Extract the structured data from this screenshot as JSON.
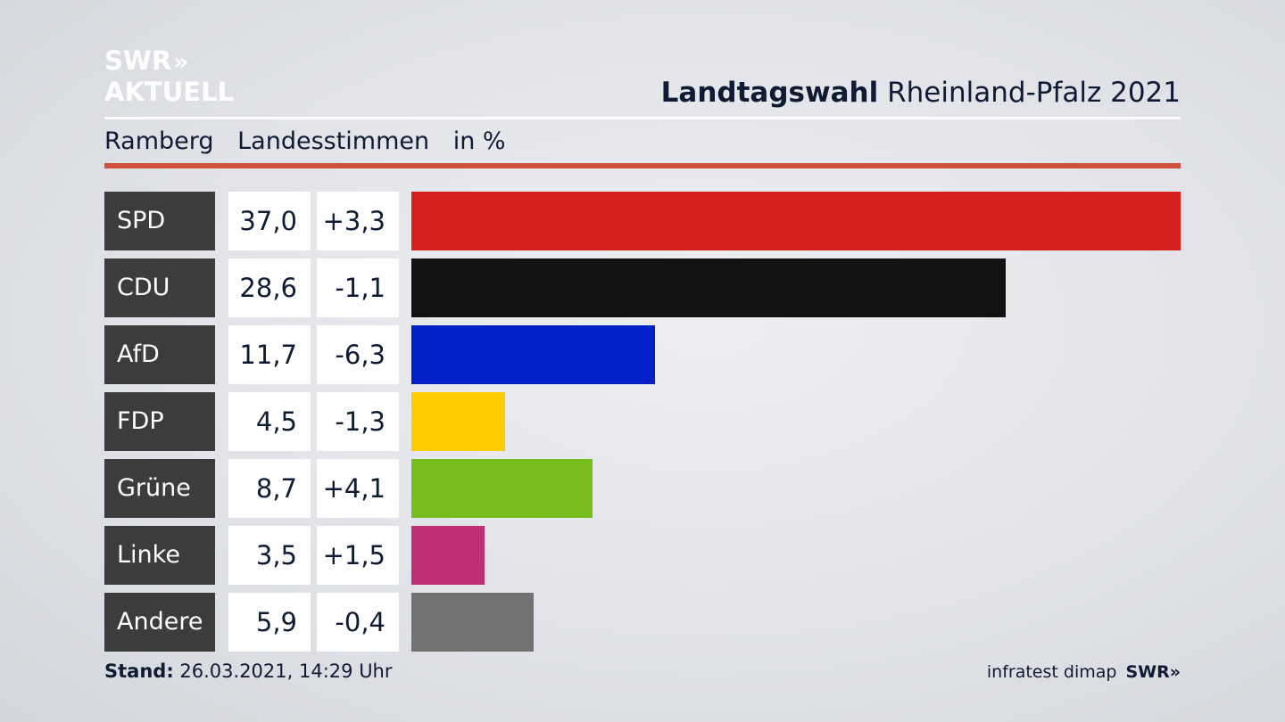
{
  "logo": {
    "line1": "SWR",
    "chevrons": "»",
    "line2": "AKTUELL"
  },
  "header": {
    "title_bold": "Landtagswahl",
    "title_rest": "Rheinland-Pfalz 2021"
  },
  "subheader": {
    "region": "Ramberg",
    "vote_type": "Landesstimmen",
    "unit": "in %"
  },
  "chart_data": {
    "type": "bar",
    "orientation": "horizontal",
    "categories": [
      "SPD",
      "CDU",
      "AfD",
      "FDP",
      "Grüne",
      "Linke",
      "Andere"
    ],
    "values": [
      37.0,
      28.6,
      11.7,
      4.5,
      8.7,
      3.5,
      5.9
    ],
    "value_labels": [
      "37,0",
      "28,6",
      "11,7",
      "4,5",
      "8,7",
      "3,5",
      "5,9"
    ],
    "changes": [
      3.3,
      -1.1,
      -6.3,
      -1.3,
      4.1,
      1.5,
      -0.4
    ],
    "change_labels": [
      "+3,3",
      "-1,1",
      "-6,3",
      "-1,3",
      "+4,1",
      "+1,5",
      "-0,4"
    ],
    "colors": [
      "#d62020",
      "#121212",
      "#0020c8",
      "#ffcc00",
      "#76bc1d",
      "#be2f73",
      "#727272"
    ],
    "xlim": [
      0,
      37.0
    ]
  },
  "footer": {
    "stand_label": "Stand:",
    "stand_value": "26.03.2021, 14:29 Uhr",
    "source": "infratest dimap",
    "brand": "SWR",
    "brand_chevrons": "»"
  }
}
